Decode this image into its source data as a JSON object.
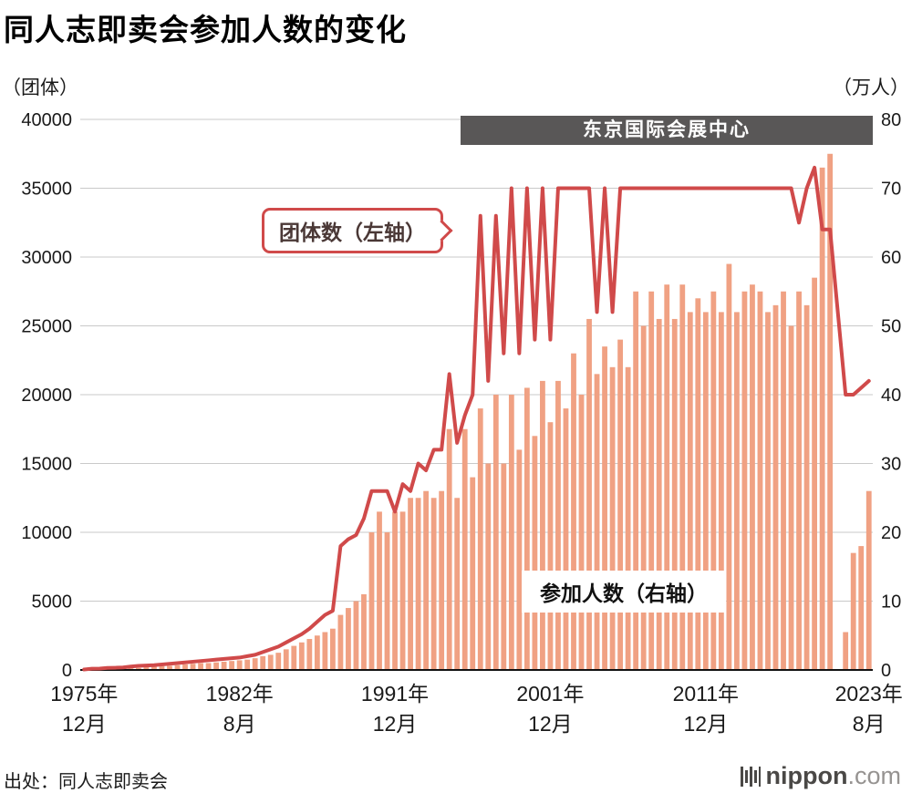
{
  "title": "同人志即卖会参加人数的变化",
  "source": "出处：同人志即卖会",
  "logo": {
    "name": "nippon",
    "suffix": ".com"
  },
  "banner": {
    "label": "东京国际会展中心"
  },
  "annotations": {
    "line_label": "团体数（左轴）",
    "bar_label": "参加人数（右轴）"
  },
  "axes": {
    "left": {
      "unit": "（团体）",
      "ticks": [
        0,
        5000,
        10000,
        15000,
        20000,
        25000,
        30000,
        35000,
        40000
      ]
    },
    "right": {
      "unit": "（万人）",
      "ticks": [
        0,
        10,
        20,
        30,
        40,
        50,
        60,
        70,
        80
      ]
    },
    "x": {
      "ticks": [
        {
          "index": 0,
          "line1": "1975年",
          "line2": "12月"
        },
        {
          "index": 20,
          "line1": "1982年",
          "line2": "8月"
        },
        {
          "index": 40,
          "line1": "1991年",
          "line2": "12月"
        },
        {
          "index": 60,
          "line1": "2001年",
          "line2": "12月"
        },
        {
          "index": 80,
          "line1": "2011年",
          "line2": "12月"
        },
        {
          "index": 101,
          "line1": "2023年",
          "line2": "8月"
        }
      ]
    }
  },
  "colors": {
    "line": "#d04a4a",
    "bar": "#f0a183",
    "banner_bg": "#595757",
    "grid": "#c9c9c9",
    "text": "#1a1a1a",
    "logo_dark": "#4a4846",
    "logo_gray": "#969391"
  },
  "chart_data": {
    "type": "bar+line",
    "title": "同人志即卖会参加人数的变化",
    "n_points": 102,
    "ylim_left": [
      0,
      40000
    ],
    "ylim_right": [
      0,
      80
    ],
    "grid": true,
    "banner_span": {
      "label": "东京国际会展中心",
      "start_index": 49,
      "end_index": 101
    },
    "series": [
      {
        "name": "团体数",
        "axis": "left",
        "unit": "团体",
        "type": "line",
        "values": [
          32,
          90,
          100,
          150,
          160,
          180,
          250,
          300,
          320,
          350,
          400,
          450,
          500,
          550,
          600,
          650,
          700,
          750,
          800,
          850,
          900,
          1000,
          1100,
          1300,
          1500,
          1700,
          2000,
          2300,
          2600,
          3000,
          3500,
          4000,
          4300,
          9000,
          9500,
          9800,
          11000,
          13000,
          13000,
          13000,
          11500,
          13500,
          13000,
          15000,
          14500,
          16000,
          16000,
          21500,
          16500,
          18500,
          20000,
          33000,
          21000,
          33000,
          23000,
          35000,
          23000,
          35000,
          24000,
          35000,
          24000,
          35000,
          35000,
          35000,
          35000,
          35000,
          26000,
          35000,
          26000,
          35000,
          35000,
          35000,
          35000,
          35000,
          35000,
          35000,
          35000,
          35000,
          35000,
          35000,
          35000,
          35000,
          35000,
          35000,
          35000,
          35000,
          35000,
          35000,
          35000,
          35000,
          35000,
          35000,
          32500,
          35000,
          36500,
          32000,
          32000,
          null,
          20000,
          20000,
          20500,
          21000
        ]
      },
      {
        "name": "参加人数",
        "axis": "right",
        "unit": "万人",
        "type": "bar",
        "values": [
          0.07,
          0.1,
          0.1,
          0.15,
          0.2,
          0.2,
          0.25,
          0.3,
          0.4,
          0.5,
          0.55,
          0.6,
          0.7,
          0.8,
          0.9,
          1.0,
          1.0,
          1.1,
          1.2,
          1.3,
          1.4,
          1.5,
          1.7,
          2.0,
          2.2,
          2.5,
          3.0,
          3.5,
          4.0,
          4.5,
          5.0,
          5.5,
          6.0,
          8.0,
          9.0,
          10.0,
          11.0,
          20.0,
          23.0,
          20.0,
          23.0,
          23.0,
          25.0,
          25.0,
          26.0,
          25.0,
          26.0,
          35.0,
          25.0,
          35.0,
          28.0,
          38.0,
          30.0,
          40.0,
          30.0,
          40.0,
          32.0,
          41.0,
          34.0,
          42.0,
          36.0,
          42.0,
          38.0,
          46.0,
          40.0,
          51.0,
          43.0,
          47.0,
          44.0,
          48.0,
          44.0,
          55.0,
          50.0,
          55.0,
          51.0,
          56.0,
          51.0,
          56.0,
          52.0,
          54.0,
          52.0,
          55.0,
          52.0,
          59.0,
          52.0,
          55.0,
          56.0,
          55.0,
          52.0,
          53.0,
          55.0,
          50.0,
          55.0,
          53.0,
          57.0,
          73.0,
          75.0,
          null,
          5.5,
          17.0,
          18.0,
          26.0
        ]
      }
    ]
  }
}
